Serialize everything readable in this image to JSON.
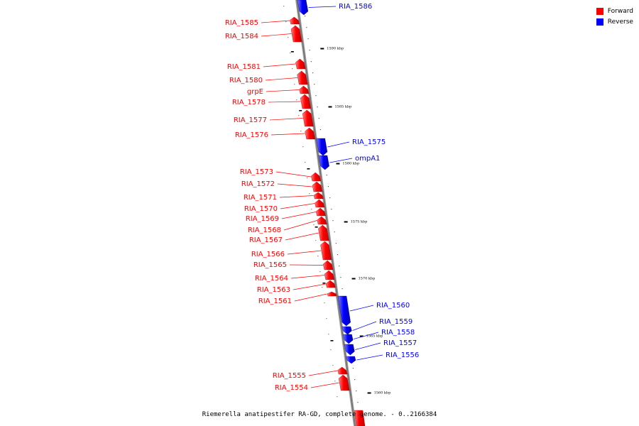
{
  "caption": "Riemerella anatipestifer RA-GD, complete genome. - 0..2166384",
  "legend": [
    {
      "label": "Forward",
      "color": "#ff0000"
    },
    {
      "label": "Reverse",
      "color": "#0000ff"
    }
  ],
  "colors": {
    "forward": "#ff0000",
    "reverse": "#0000ff",
    "backbone": "#888888"
  },
  "ticks": [
    "1590 kbp",
    "1585 kbp",
    "1580 kbp",
    "1575 kbp",
    "1570 kbp",
    "1565 kbp",
    "1560 kbp"
  ],
  "genes": [
    {
      "name": "RIA_1586",
      "strand": "reverse"
    },
    {
      "name": "RIA_1585",
      "strand": "forward"
    },
    {
      "name": "RIA_1584",
      "strand": "forward"
    },
    {
      "name": "RIA_1581",
      "strand": "forward"
    },
    {
      "name": "RIA_1580",
      "strand": "forward"
    },
    {
      "name": "grpE",
      "strand": "forward"
    },
    {
      "name": "RIA_1578",
      "strand": "forward"
    },
    {
      "name": "RIA_1577",
      "strand": "forward"
    },
    {
      "name": "RIA_1576",
      "strand": "forward"
    },
    {
      "name": "RIA_1575",
      "strand": "reverse"
    },
    {
      "name": "ompA1",
      "strand": "reverse"
    },
    {
      "name": "RIA_1573",
      "strand": "forward"
    },
    {
      "name": "RIA_1572",
      "strand": "forward"
    },
    {
      "name": "RIA_1571",
      "strand": "forward"
    },
    {
      "name": "RIA_1570",
      "strand": "forward"
    },
    {
      "name": "RIA_1569",
      "strand": "forward"
    },
    {
      "name": "RIA_1568",
      "strand": "forward"
    },
    {
      "name": "RIA_1567",
      "strand": "forward"
    },
    {
      "name": "RIA_1566",
      "strand": "forward"
    },
    {
      "name": "RIA_1565",
      "strand": "forward"
    },
    {
      "name": "RIA_1564",
      "strand": "forward"
    },
    {
      "name": "RIA_1563",
      "strand": "forward"
    },
    {
      "name": "RIA_1561",
      "strand": "forward"
    },
    {
      "name": "RIA_1560",
      "strand": "reverse"
    },
    {
      "name": "RIA_1559",
      "strand": "reverse"
    },
    {
      "name": "RIA_1558",
      "strand": "reverse"
    },
    {
      "name": "RIA_1557",
      "strand": "reverse"
    },
    {
      "name": "RIA_1556",
      "strand": "reverse"
    },
    {
      "name": "RIA_1555",
      "strand": "forward"
    },
    {
      "name": "RIA_1554",
      "strand": "forward"
    }
  ]
}
